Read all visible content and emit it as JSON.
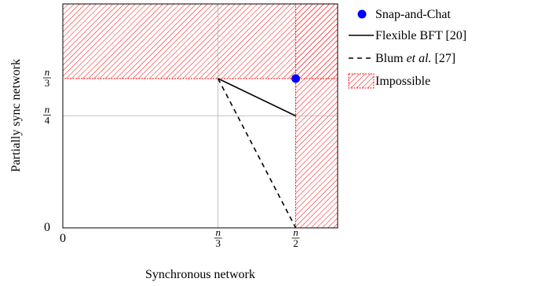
{
  "chart_data": {
    "type": "line",
    "xlabel": "Synchronous network",
    "ylabel": "Partially sync network",
    "xlim": [
      0,
      0.59
    ],
    "ylim": [
      0,
      0.5
    ],
    "x_ticks": [
      {
        "value": 0,
        "num": "0",
        "den": ""
      },
      {
        "value": 0.3333,
        "num": "n",
        "den": "3"
      },
      {
        "value": 0.5,
        "num": "n",
        "den": "2"
      }
    ],
    "y_ticks": [
      {
        "value": 0,
        "num": "0",
        "den": ""
      },
      {
        "value": 0.25,
        "num": "n",
        "den": "4"
      },
      {
        "value": 0.3333,
        "num": "n",
        "den": "3"
      }
    ],
    "gridlines": {
      "x": [
        0.3333
      ],
      "y": [
        0.25
      ]
    },
    "series": [
      {
        "name": "Snap-and-Chat",
        "style": "point",
        "color": "#0000ff",
        "points": [
          {
            "x": 0.5,
            "y": 0.3333
          }
        ]
      },
      {
        "name": "Flexible BFT [20]",
        "style": "solid",
        "color": "#000000",
        "points": [
          {
            "x": 0.3333,
            "y": 0.3333
          },
          {
            "x": 0.5,
            "y": 0.25
          }
        ]
      },
      {
        "name": "Blum et al. [27]",
        "name_prefix": "Blum ",
        "name_italic": "et al.",
        "name_suffix": " [27]",
        "style": "dashed",
        "color": "#000000",
        "points": [
          {
            "x": 0.3333,
            "y": 0.3333
          },
          {
            "x": 0.5,
            "y": 0
          }
        ]
      }
    ],
    "impossible_regions": [
      {
        "x0": 0,
        "x1": 0.59,
        "y0": 0.3333,
        "y1": 0.5
      },
      {
        "x0": 0.5,
        "x1": 0.59,
        "y0": 0,
        "y1": 0.5
      }
    ],
    "legend": {
      "placement": "right",
      "entries": [
        {
          "key": "snap",
          "label": "Snap-and-Chat"
        },
        {
          "key": "flex",
          "label": "Flexible BFT [20]"
        },
        {
          "key": "blum",
          "prefix": "Blum ",
          "italic": "et al.",
          "suffix": " [27]"
        },
        {
          "key": "imp",
          "label": "Impossible"
        }
      ]
    },
    "colors": {
      "hatch": "#ff0000",
      "point": "#0000ff",
      "grid": "#b0b0b0"
    }
  }
}
